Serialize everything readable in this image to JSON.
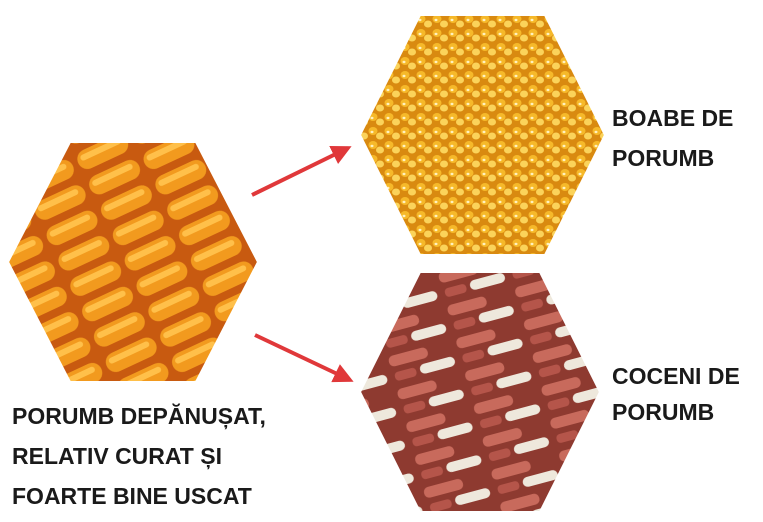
{
  "nodes": [
    {
      "label": [
        "PORUMB DEPĂNUȘAT,",
        "RELATIV CURAT ȘI",
        "FOARTE BINE USCAT"
      ]
    },
    {
      "label": [
        "BOABE DE",
        "PORUMB"
      ]
    },
    {
      "label": [
        "COCENI DE",
        "PORUMB"
      ]
    }
  ]
}
